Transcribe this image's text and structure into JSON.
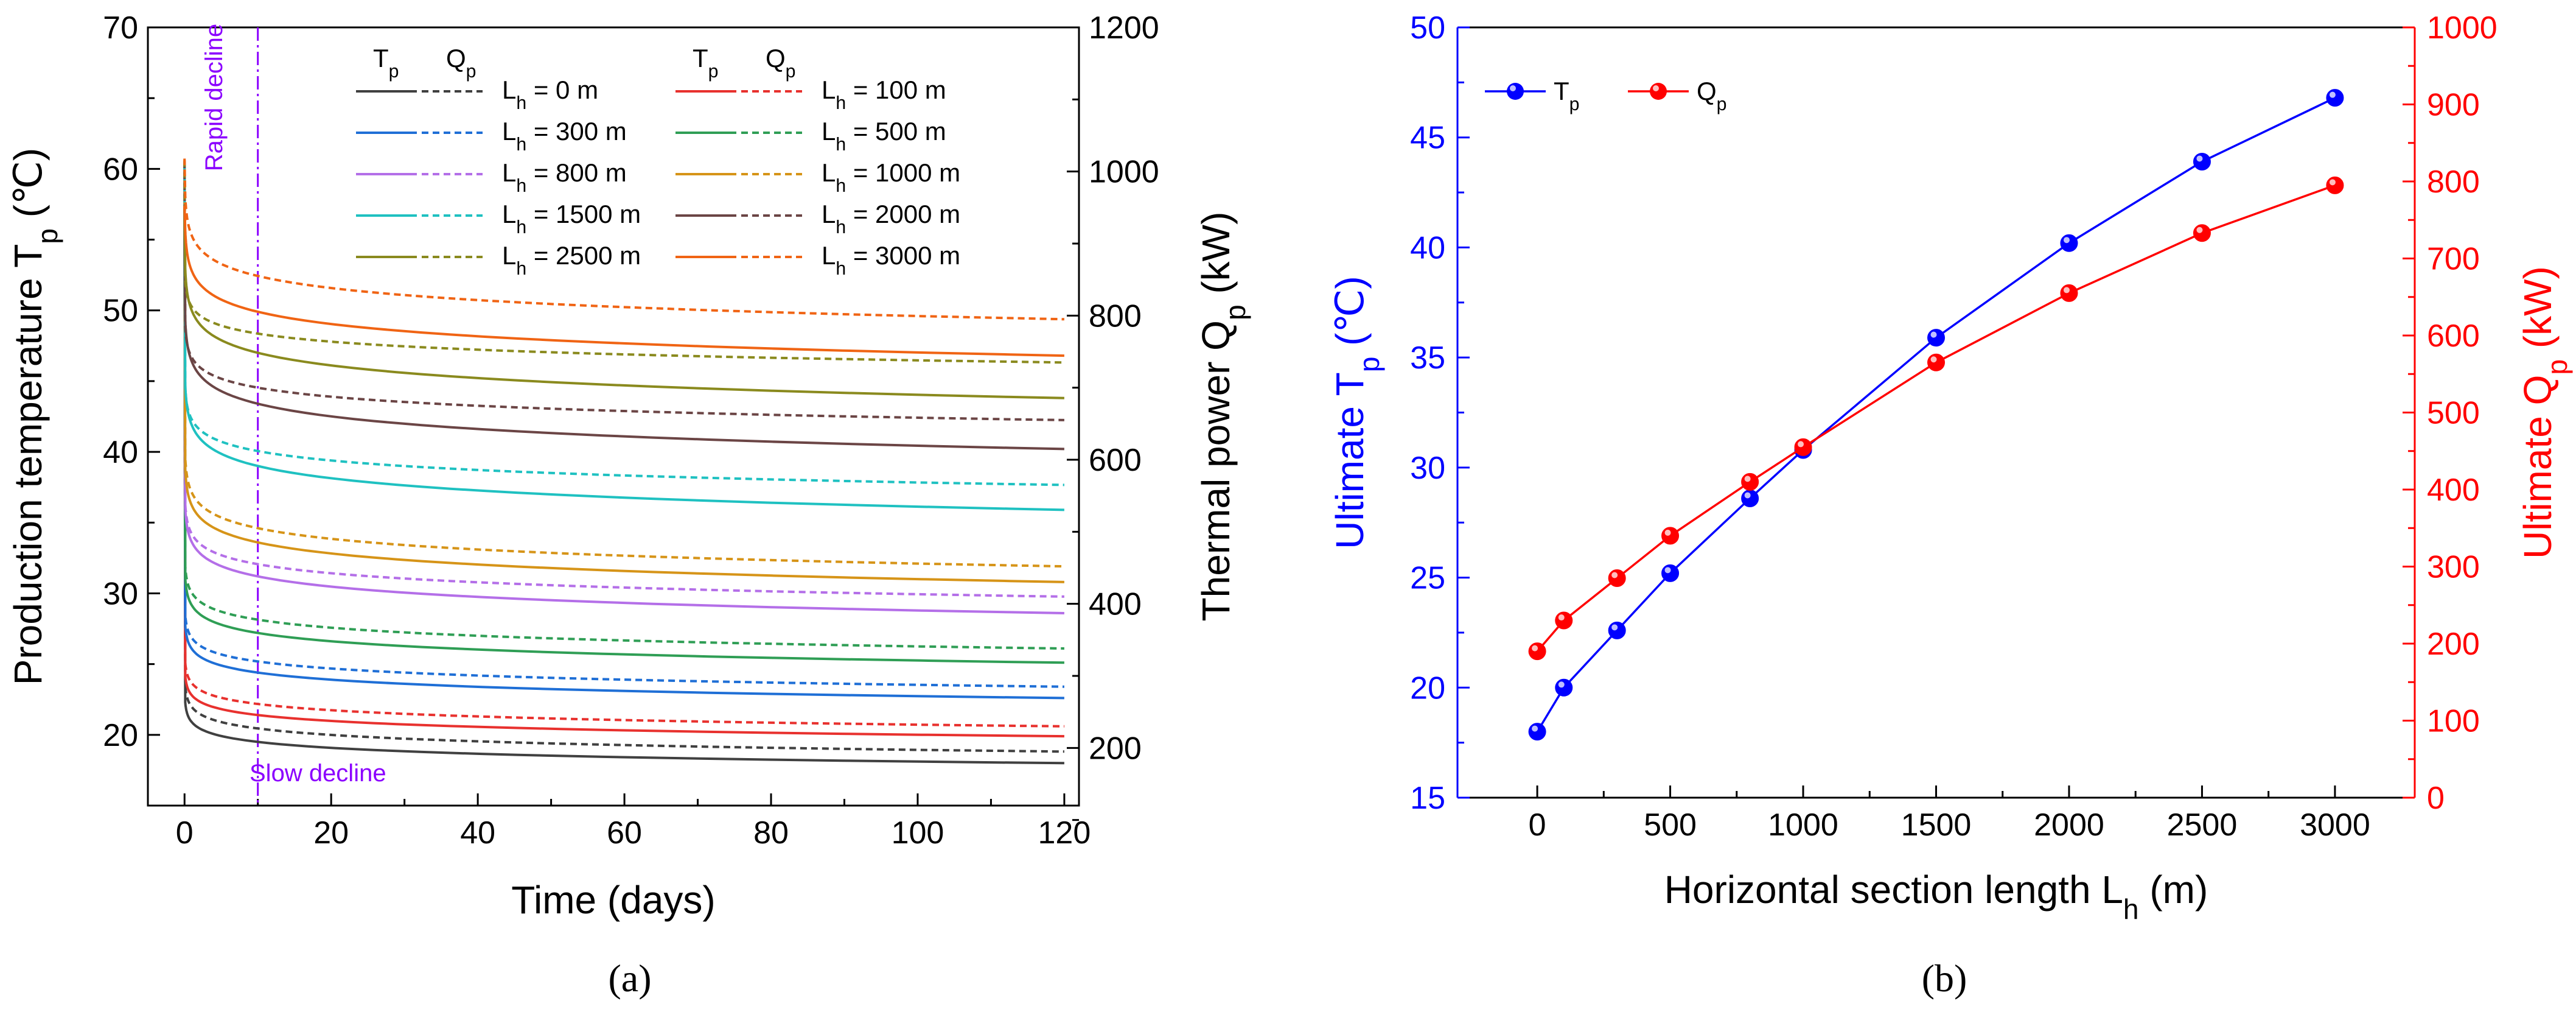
{
  "chart_data": [
    {
      "panel": "a",
      "type": "line",
      "caption": "(a)",
      "xlabel": "Time (days)",
      "ylabel_left": "Production temperature T_p (℃)",
      "ylabel_right": "Thermal power Q_p (kW)",
      "xlim": [
        -5,
        122
      ],
      "ylim_left": [
        15,
        70
      ],
      "ylim_right": [
        120,
        1200
      ],
      "xticks": [
        0,
        20,
        40,
        60,
        80,
        100,
        120
      ],
      "yticks_left": [
        20,
        30,
        40,
        50,
        60,
        70
      ],
      "yticks_right": [
        200,
        400,
        600,
        800,
        1000,
        1200
      ],
      "legend_header": {
        "tp": "T",
        "qp": "Q",
        "sub": "p"
      },
      "annotations": {
        "rapid": "Rapid decline",
        "slow": "Slow decline",
        "divider_day": 10
      },
      "series": [
        {
          "name": "L_h = 0 m",
          "label_main": "L",
          "label_sub": "h",
          "label_rest": " = 0 m",
          "color": "#404040",
          "tp_day10": 19.5,
          "tp_day120": 18.0,
          "qp_day10": 227,
          "qp_day120": 195
        },
        {
          "name": "L_h = 100 m",
          "label_main": "L",
          "label_sub": "h",
          "label_rest": " = 100 m",
          "color": "#e8312e",
          "tp_day10": 21.4,
          "tp_day120": 19.9,
          "qp_day10": 261,
          "qp_day120": 230
        },
        {
          "name": "L_h = 300 m",
          "label_main": "L",
          "label_sub": "h",
          "label_rest": " = 300 m",
          "color": "#1f6fd6",
          "tp_day10": 24.4,
          "tp_day120": 22.6,
          "qp_day10": 320,
          "qp_day120": 285
        },
        {
          "name": "L_h = 500 m",
          "label_main": "L",
          "label_sub": "h",
          "label_rest": " = 500 m",
          "color": "#2f9e55",
          "tp_day10": 27.2,
          "tp_day120": 25.1,
          "qp_day10": 378,
          "qp_day120": 338
        },
        {
          "name": "L_h = 800 m",
          "label_main": "L",
          "label_sub": "h",
          "label_rest": " = 800 m",
          "color": "#b46fe8",
          "tp_day10": 31.2,
          "tp_day120": 28.6,
          "qp_day10": 455,
          "qp_day120": 410
        },
        {
          "name": "L_h = 1000 m",
          "label_main": "L",
          "label_sub": "h",
          "label_rest": " = 1000 m",
          "color": "#d69418",
          "tp_day10": 33.6,
          "tp_day120": 30.8,
          "qp_day10": 505,
          "qp_day120": 452
        },
        {
          "name": "L_h = 1500 m",
          "label_main": "L",
          "label_sub": "h",
          "label_rest": " = 1500 m",
          "color": "#1fc1c1",
          "tp_day10": 39.0,
          "tp_day120": 35.9,
          "qp_day10": 612,
          "qp_day120": 565
        },
        {
          "name": "L_h = 2000 m",
          "label_main": "L",
          "label_sub": "h",
          "label_rest": " = 2000 m",
          "color": "#6b4545",
          "tp_day10": 43.4,
          "tp_day120": 40.2,
          "qp_day10": 700,
          "qp_day120": 655
        },
        {
          "name": "L_h = 2500 m",
          "label_main": "L",
          "label_sub": "h",
          "label_rest": " = 2500 m",
          "color": "#8a8a1e",
          "tp_day10": 47.0,
          "tp_day120": 43.8,
          "qp_day10": 775,
          "qp_day120": 735
        },
        {
          "name": "L_h = 3000 m",
          "label_main": "L",
          "label_sub": "h",
          "label_rest": " = 3000 m",
          "color": "#f06414",
          "tp_day10": 49.9,
          "tp_day120": 46.8,
          "qp_day10": 855,
          "qp_day120": 795
        }
      ]
    },
    {
      "panel": "b",
      "type": "line",
      "caption": "(b)",
      "xlabel": "Horizontal section length L_h (m)",
      "ylabel_left": "Ultimate T_p (℃)",
      "ylabel_right": "Ultimate Q_p (kW)",
      "xlim": [
        -300,
        3300
      ],
      "ylim_left": [
        15,
        50
      ],
      "ylim_right": [
        0,
        1000
      ],
      "xticks": [
        0,
        500,
        1000,
        1500,
        2000,
        2500,
        3000
      ],
      "yticks_left": [
        15,
        20,
        25,
        30,
        35,
        40,
        45,
        50
      ],
      "yticks_right": [
        0,
        100,
        200,
        300,
        400,
        500,
        600,
        700,
        800,
        900,
        1000
      ],
      "x": [
        0,
        100,
        300,
        500,
        800,
        1000,
        1500,
        2000,
        2500,
        3000
      ],
      "series": [
        {
          "name": "Tp",
          "label_main": "T",
          "label_sub": "p",
          "color": "#0000ff",
          "axis": "left",
          "values": [
            18.0,
            20.0,
            22.6,
            25.2,
            28.6,
            30.8,
            35.9,
            40.2,
            43.9,
            46.8
          ]
        },
        {
          "name": "Qp",
          "label_main": "Q",
          "label_sub": "p",
          "color": "#ff0000",
          "axis": "right",
          "values": [
            190,
            230,
            285,
            340,
            410,
            455,
            565,
            655,
            733,
            795
          ]
        }
      ]
    }
  ]
}
